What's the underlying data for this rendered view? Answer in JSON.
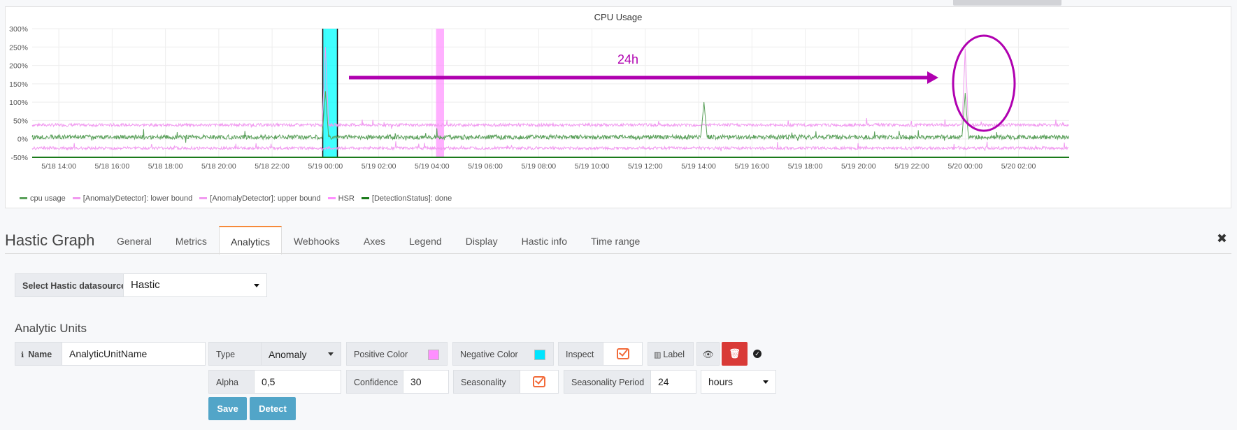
{
  "panel": {
    "title": "CPU Usage"
  },
  "colors": {
    "cpu": "#5aa05a",
    "bound": "#f19af0",
    "hsr": "#ff8fff",
    "done": "#1a7a1a",
    "annotation": "#b000b0",
    "selection": "#00ffff",
    "positive": "#ff8fff",
    "negative": "#00e5ff",
    "accent": "#f68a3a",
    "button_blue": "#52a5c8",
    "button_red": "#d93a37"
  },
  "chart_data": {
    "type": "line",
    "title": "CPU Usage",
    "y_ticks": [
      "300%",
      "250%",
      "200%",
      "150%",
      "100%",
      "50%",
      "0%",
      "-50%"
    ],
    "x_ticks": [
      "5/18 14:00",
      "5/18 16:00",
      "5/18 18:00",
      "5/18 20:00",
      "5/18 22:00",
      "5/19 00:00",
      "5/19 02:00",
      "5/19 04:00",
      "5/19 06:00",
      "5/19 08:00",
      "5/19 10:00",
      "5/19 12:00",
      "5/19 14:00",
      "5/19 16:00",
      "5/19 18:00",
      "5/19 20:00",
      "5/19 22:00",
      "5/20 00:00",
      "5/20 02:00"
    ],
    "ylim": [
      -50,
      300
    ],
    "grid": true,
    "legend_position": "bottom-left",
    "series": [
      {
        "name": "cpu usage",
        "baseline": 5,
        "peaks": [
          {
            "t": 24.0,
            "value": 130
          },
          {
            "t": 38.2,
            "value": 100
          },
          {
            "t": 48.0,
            "value": 125
          }
        ]
      },
      {
        "name": "[AnomalyDetector]: lower bound",
        "baseline": -25
      },
      {
        "name": "[AnomalyDetector]: upper bound",
        "baseline": 38,
        "peaks": [
          {
            "t": 24.0,
            "value": 250
          },
          {
            "t": 48.0,
            "value": 245
          }
        ]
      },
      {
        "name": "HSR"
      },
      {
        "name": "[DetectionStatus]: done"
      }
    ],
    "segments": [
      {
        "from": 23.9,
        "to": 24.45,
        "type": "negative"
      },
      {
        "from": 28.15,
        "to": 28.45,
        "type": "positive"
      }
    ],
    "annotation": {
      "label": "24h"
    }
  },
  "editor": {
    "title": "Hastic Graph",
    "tabs": [
      "General",
      "Metrics",
      "Analytics",
      "Webhooks",
      "Axes",
      "Legend",
      "Display",
      "Hastic info",
      "Time range"
    ],
    "active_tab": "Analytics",
    "datasource_label": "Select Hastic datasource",
    "datasource_value": "Hastic",
    "section_title": "Analytic Units",
    "unit": {
      "name_label": "Name",
      "name_value": "AnalyticUnitName",
      "type_label": "Type",
      "type_value": "Anomaly",
      "positive_label": "Positive Color",
      "negative_label": "Negative Color",
      "inspect_label": "Inspect",
      "label_button": "Label",
      "alpha_label": "Alpha",
      "alpha_value": "0,5",
      "confidence_label": "Confidence",
      "confidence_value": "30",
      "seasonality_label": "Seasonality",
      "period_label": "Seasonality Period",
      "period_value": "24",
      "period_unit": "hours",
      "save_label": "Save",
      "detect_label": "Detect"
    }
  }
}
